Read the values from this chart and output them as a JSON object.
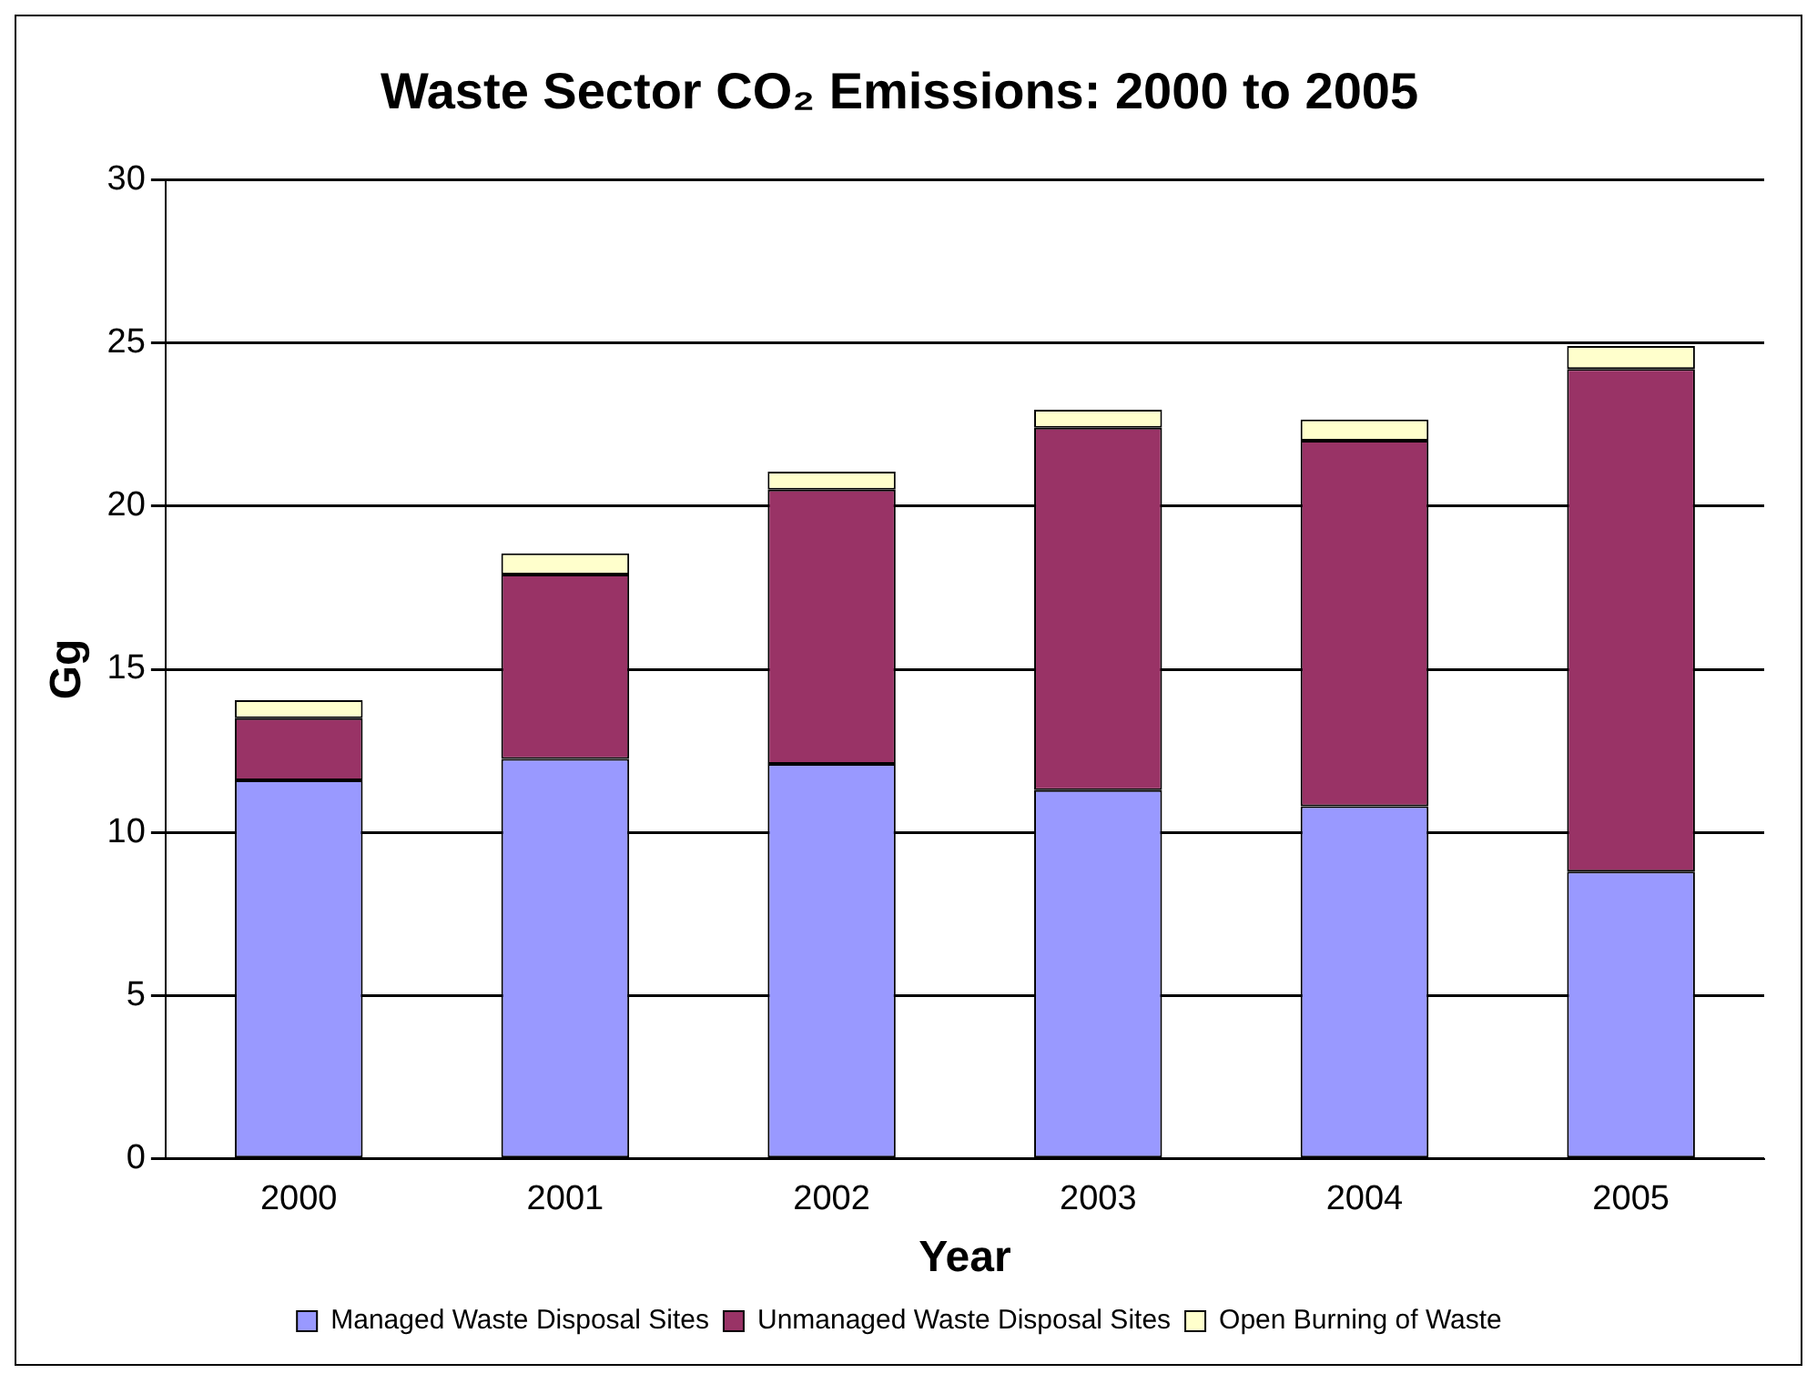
{
  "chart_data": {
    "type": "bar",
    "title": "Waste Sector CO₂ Emissions: 2000 to 2005",
    "xlabel": "Year",
    "ylabel": "Gg",
    "categories": [
      "2000",
      "2001",
      "2002",
      "2003",
      "2004",
      "2005"
    ],
    "series": [
      {
        "name": "Managed Waste Disposal Sites",
        "color": "#9999ff",
        "values": [
          11.6,
          12.25,
          12.1,
          11.3,
          10.8,
          8.8
        ]
      },
      {
        "name": "Unmanaged Waste Disposal Sites",
        "color": "#993366",
        "values": [
          1.9,
          5.65,
          8.4,
          11.1,
          11.2,
          15.4
        ]
      },
      {
        "name": "Open Burning of Waste",
        "color": "#ffffcc",
        "values": [
          0.55,
          0.65,
          0.55,
          0.55,
          0.65,
          0.7
        ]
      }
    ],
    "stacked": true,
    "ylim": [
      0,
      30
    ],
    "yticks": [
      0,
      5,
      10,
      15,
      20,
      25,
      30
    ],
    "grid": "y",
    "legend": "bottom"
  }
}
